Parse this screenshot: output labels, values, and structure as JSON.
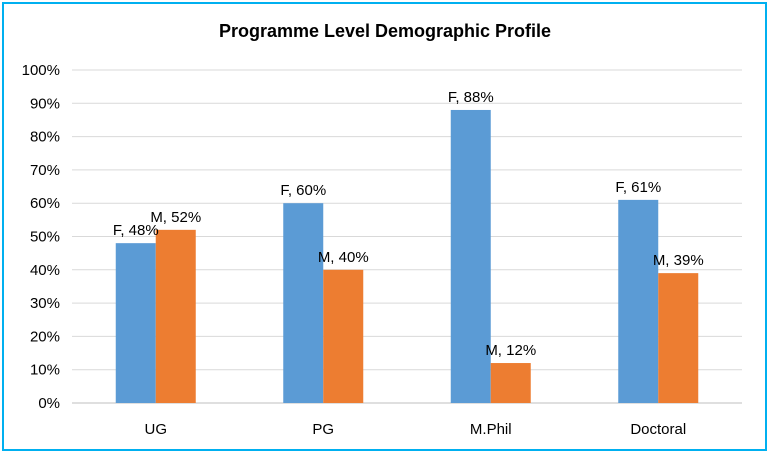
{
  "chart_data": {
    "type": "bar",
    "title": "Programme Level Demographic Profile",
    "categories": [
      "UG",
      "PG",
      "M.Phil",
      "Doctoral"
    ],
    "series": [
      {
        "color": "#5b9bd5",
        "values": [
          48,
          60,
          88,
          61
        ],
        "labels": [
          "F, 48%",
          "F, 60%",
          "F, 88%",
          "F, 61%"
        ]
      },
      {
        "color": "#ed7d31",
        "values": [
          52,
          40,
          12,
          39
        ],
        "labels": [
          "M, 52%",
          "M, 40%",
          "M, 12%",
          "M, 39%"
        ]
      }
    ],
    "ylim": [
      0,
      100
    ],
    "yticks": [
      "0%",
      "10%",
      "20%",
      "30%",
      "40%",
      "50%",
      "60%",
      "70%",
      "80%",
      "90%",
      "100%"
    ],
    "grid": true,
    "legend": "none",
    "frame_color": "#00b0f0"
  }
}
